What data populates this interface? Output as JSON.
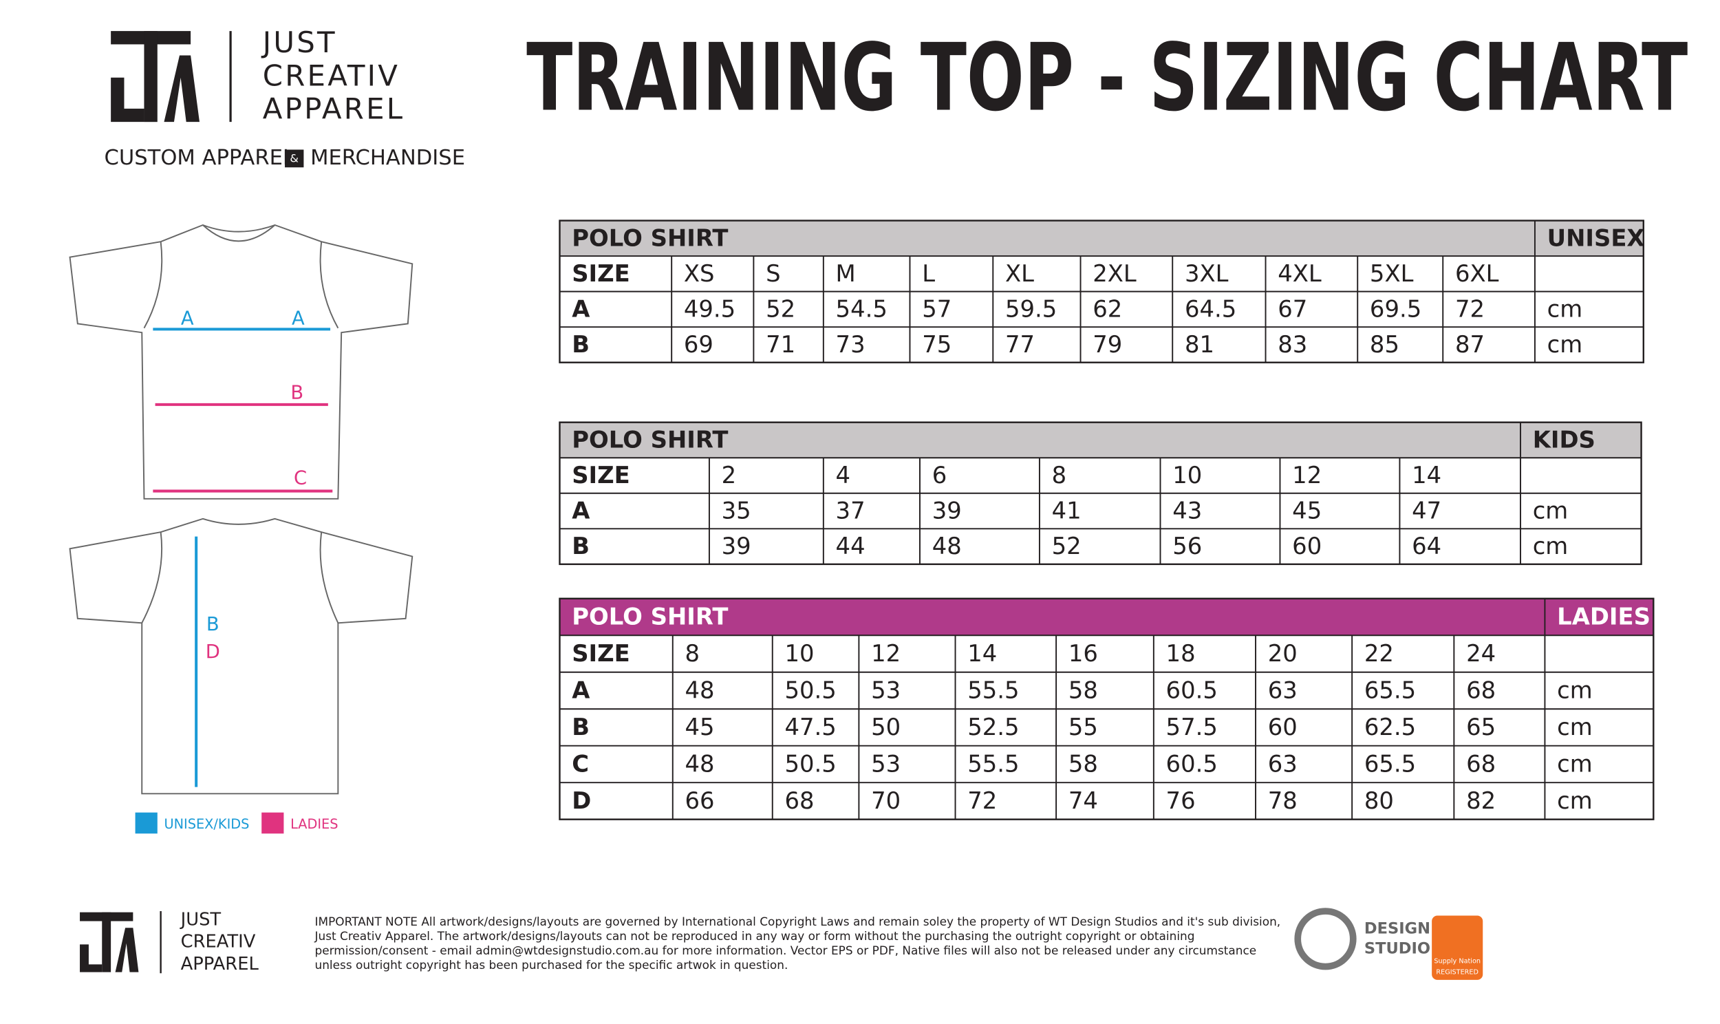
{
  "header": {
    "brand": [
      "JUST",
      "CREATIV",
      "APPAREL"
    ],
    "tagline_left": "CUSTOM APPAREL",
    "tagline_amp": "&",
    "tagline_right": "MERCHANDISE",
    "title": "TRAINING TOP - SIZING CHART"
  },
  "diagram": {
    "front_labels": [
      "A",
      "A",
      "B",
      "C"
    ],
    "back_labels": [
      "B",
      "D"
    ],
    "legend": [
      "UNISEX/KIDS",
      "LADIES"
    ]
  },
  "tables": [
    {
      "title": "POLO SHIRT",
      "group": "UNISEX",
      "header": [
        "SIZE",
        "XS",
        "S",
        "M",
        "L",
        "XL",
        "2XL",
        "3XL",
        "4XL",
        "5XL",
        "6XL"
      ],
      "rows": [
        [
          "A",
          49.5,
          52,
          54.5,
          57,
          59.5,
          62,
          64.5,
          67,
          69.5,
          72,
          "cm"
        ],
        [
          "B",
          69,
          71,
          73,
          75,
          77,
          79,
          81,
          83,
          85,
          87,
          "cm"
        ]
      ]
    },
    {
      "title": "POLO SHIRT",
      "group": "KIDS",
      "header": [
        "SIZE",
        "2",
        "4",
        "6",
        "8",
        "10",
        "12",
        "14"
      ],
      "rows": [
        [
          "A",
          35,
          37,
          39,
          41,
          43,
          45,
          47,
          "cm"
        ],
        [
          "B",
          39,
          44,
          48,
          52,
          56,
          60,
          64,
          "cm"
        ]
      ]
    },
    {
      "title": "POLO SHIRT",
      "group": "LADIES",
      "header": [
        "SIZE",
        "8",
        "10",
        "12",
        "14",
        "16",
        "18",
        "20",
        "22",
        "24"
      ],
      "rows": [
        [
          "A",
          48,
          50.5,
          53,
          55.5,
          58,
          60.5,
          63,
          65.5,
          68,
          "cm"
        ],
        [
          "B",
          45,
          47.5,
          50,
          52.5,
          55,
          57.5,
          60,
          62.5,
          65,
          "cm"
        ],
        [
          "C",
          48,
          50.5,
          53,
          55.5,
          58,
          60.5,
          63,
          65.5,
          68,
          "cm"
        ],
        [
          "D",
          66,
          68,
          70,
          72,
          74,
          76,
          78,
          80,
          82,
          "cm"
        ]
      ]
    }
  ],
  "footer": {
    "brand": [
      "JUST",
      "CREATIV",
      "APPAREL"
    ],
    "note": [
      "IMPORTANT NOTE All artwork/designs/layouts are governed by International Copyright Laws and remain soley the property of WT Design Studios and it's sub division,",
      "Just Creativ Apparel. The artwork/designs/layouts can not be reproduced in any way or form without the purchasing the outright copyright or obtaining",
      "permission/consent - email admin@wtdesignstudio.com.au for more information. Vector EPS or PDF, Native files will also not be released under any circumstance",
      "unless outright copyright has been purchased for the specific artwok in question."
    ],
    "studio": [
      "DESIGN",
      "STUDIO"
    ],
    "badge": [
      "Supply Nation",
      "REGISTERED"
    ]
  }
}
